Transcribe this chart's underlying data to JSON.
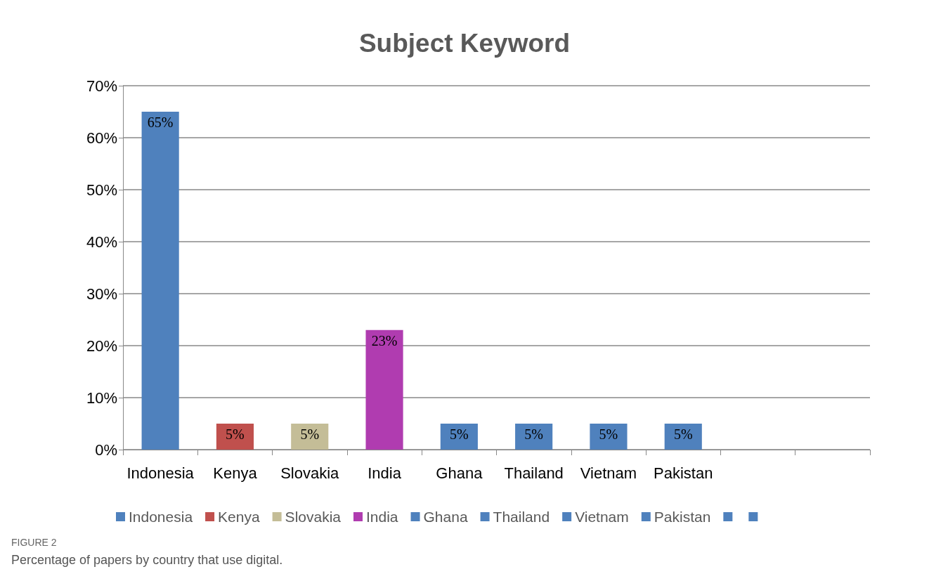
{
  "chart_data": {
    "type": "bar",
    "title": "Subject Keyword",
    "stacked": true,
    "categories": [
      "Indonesia",
      "Kenya",
      "Slovakia",
      "India",
      "Ghana",
      "Thailand",
      "Vietnam",
      "Pakistan",
      null,
      null
    ],
    "series": [
      {
        "name": "Indonesia",
        "color": "#4f81bd",
        "values": [
          65,
          null,
          null,
          null,
          null,
          null,
          null,
          null,
          null,
          null
        ],
        "value_labels": [
          "65%",
          null,
          null,
          null,
          null,
          null,
          null,
          null,
          null,
          null
        ]
      },
      {
        "name": "Kenya",
        "color": "#c0504d",
        "values": [
          null,
          5,
          null,
          null,
          null,
          null,
          null,
          null,
          null,
          null
        ],
        "value_labels": [
          null,
          "5%",
          null,
          null,
          null,
          null,
          null,
          null,
          null,
          null
        ]
      },
      {
        "name": "Slovakia",
        "color": "#c4bd97",
        "values": [
          null,
          null,
          5,
          null,
          null,
          null,
          null,
          null,
          null,
          null
        ],
        "value_labels": [
          null,
          null,
          "5%",
          null,
          null,
          null,
          null,
          null,
          null,
          null
        ]
      },
      {
        "name": "India",
        "color": "#b03cb0",
        "values": [
          null,
          null,
          null,
          23,
          null,
          null,
          null,
          null,
          null,
          null
        ],
        "value_labels": [
          null,
          null,
          null,
          "23%",
          null,
          null,
          null,
          null,
          null,
          null
        ]
      },
      {
        "name": "Ghana",
        "color": "#4f81bd",
        "values": [
          null,
          null,
          null,
          null,
          5,
          null,
          null,
          null,
          null,
          null
        ],
        "value_labels": [
          null,
          null,
          null,
          null,
          "5%",
          null,
          null,
          null,
          null,
          null
        ]
      },
      {
        "name": "Thailand",
        "color": "#4f81bd",
        "values": [
          null,
          null,
          null,
          null,
          null,
          5,
          null,
          null,
          null,
          null
        ],
        "value_labels": [
          null,
          null,
          null,
          null,
          null,
          "5%",
          null,
          null,
          null,
          null
        ]
      },
      {
        "name": "Vietnam",
        "color": "#4f81bd",
        "values": [
          null,
          null,
          null,
          null,
          null,
          null,
          5,
          null,
          null,
          null
        ],
        "value_labels": [
          null,
          null,
          null,
          null,
          null,
          null,
          "5%",
          null,
          null,
          null
        ]
      },
      {
        "name": "Pakistan",
        "color": "#4f81bd",
        "values": [
          null,
          null,
          null,
          null,
          null,
          null,
          null,
          5,
          null,
          null
        ],
        "value_labels": [
          null,
          null,
          null,
          null,
          null,
          null,
          null,
          "5%",
          null,
          null
        ]
      },
      {
        "color": "#4f81bd",
        "values": [
          null,
          null,
          null,
          null,
          null,
          null,
          null,
          null,
          null,
          null
        ]
      },
      {
        "color": "#4f81bd",
        "values": [
          null,
          null,
          null,
          null,
          null,
          null,
          null,
          null,
          null,
          null
        ]
      }
    ],
    "ylim": [
      0,
      70
    ],
    "yticks": [
      {
        "value": 0,
        "label": "0%"
      },
      {
        "value": 10,
        "label": "10%"
      },
      {
        "value": 20,
        "label": "20%"
      },
      {
        "value": 30,
        "label": "30%"
      },
      {
        "value": 40,
        "label": "40%"
      },
      {
        "value": 50,
        "label": "50%"
      },
      {
        "value": 60,
        "label": "60%"
      },
      {
        "value": 70,
        "label": "70%"
      }
    ],
    "grid": "y",
    "legend": "bottom",
    "annotations": [
      "FIGURE 2",
      "Percentage of papers by country that use digital."
    ]
  }
}
